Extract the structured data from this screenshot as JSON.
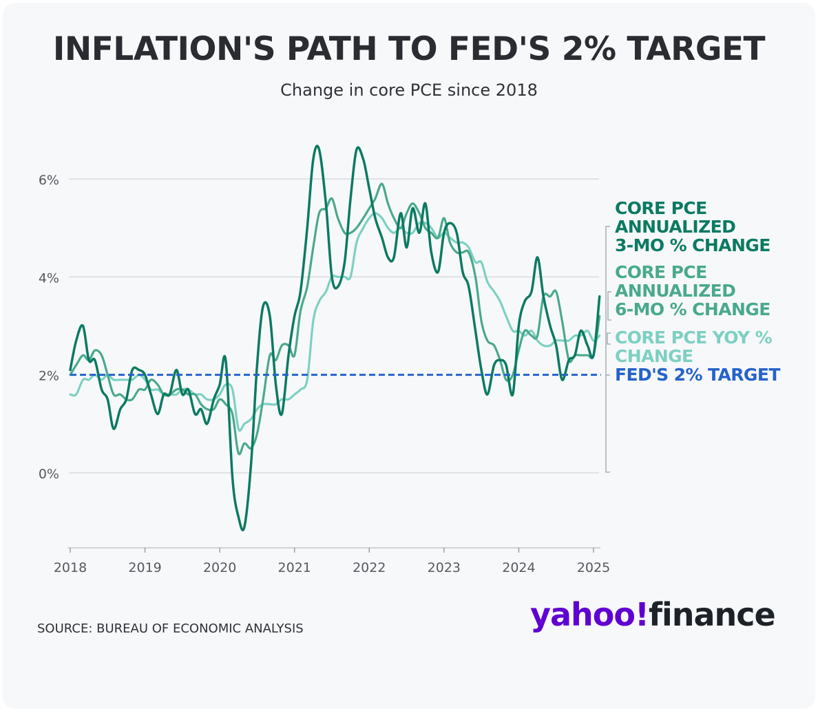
{
  "header": {
    "title": "INFLATION'S PATH TO FED'S 2% TARGET",
    "subtitle": "Change in core PCE since 2018"
  },
  "footer": {
    "source": "SOURCE: BUREAU OF ECONOMIC ANALYSIS",
    "logo_left": "yahoo!",
    "logo_right": "finance"
  },
  "colors": {
    "three_month": "#0b7a62",
    "six_month": "#49a98c",
    "yoy": "#7dd0c2",
    "target": "#2563c9",
    "grid": "#d9dbdf",
    "axis_text": "#55585e"
  },
  "chart_data": {
    "type": "line",
    "title": "INFLATION'S PATH TO FED'S 2% TARGET",
    "subtitle": "Change in core PCE since 2018",
    "xlabel": "",
    "ylabel": "",
    "xlim": [
      2018.0,
      2025.1
    ],
    "ylim": [
      -1.5,
      6.8
    ],
    "x_ticks": [
      2018,
      2019,
      2020,
      2021,
      2022,
      2023,
      2024,
      2025
    ],
    "x_tick_labels": [
      "2018",
      "2019",
      "2020",
      "2021",
      "2022",
      "2023",
      "2024",
      "2025"
    ],
    "y_ticks": [
      0,
      2,
      4,
      6
    ],
    "y_tick_labels": [
      "0%",
      "2%",
      "4%",
      "6%"
    ],
    "grid": true,
    "legend_position": "right",
    "series": [
      {
        "name": "CORE PCE YOY % CHANGE",
        "key": "yoy",
        "x": [
          2018.0,
          2018.08,
          2018.17,
          2018.25,
          2018.33,
          2018.42,
          2018.5,
          2018.58,
          2018.67,
          2018.75,
          2018.83,
          2018.92,
          2019.0,
          2019.08,
          2019.17,
          2019.25,
          2019.33,
          2019.42,
          2019.5,
          2019.58,
          2019.67,
          2019.75,
          2019.83,
          2019.92,
          2020.0,
          2020.08,
          2020.17,
          2020.25,
          2020.33,
          2020.42,
          2020.5,
          2020.58,
          2020.67,
          2020.75,
          2020.83,
          2020.92,
          2021.0,
          2021.08,
          2021.17,
          2021.25,
          2021.33,
          2021.42,
          2021.5,
          2021.58,
          2021.67,
          2021.75,
          2021.83,
          2021.92,
          2022.0,
          2022.08,
          2022.17,
          2022.25,
          2022.33,
          2022.42,
          2022.5,
          2022.58,
          2022.67,
          2022.75,
          2022.83,
          2022.92,
          2023.0,
          2023.08,
          2023.17,
          2023.25,
          2023.33,
          2023.42,
          2023.5,
          2023.58,
          2023.67,
          2023.75,
          2023.83,
          2023.92,
          2024.0,
          2024.08,
          2024.17,
          2024.25,
          2024.33,
          2024.42,
          2024.5,
          2024.58,
          2024.67,
          2024.75,
          2024.83,
          2024.92,
          2025.0,
          2025.08
        ],
        "y": [
          1.6,
          1.6,
          1.9,
          1.9,
          2.0,
          1.9,
          2.0,
          1.9,
          1.9,
          1.9,
          1.9,
          2.0,
          1.9,
          1.7,
          1.7,
          1.6,
          1.6,
          1.6,
          1.7,
          1.7,
          1.6,
          1.6,
          1.5,
          1.5,
          1.6,
          1.8,
          1.7,
          0.9,
          1.0,
          1.1,
          1.3,
          1.4,
          1.4,
          1.4,
          1.5,
          1.5,
          1.6,
          1.7,
          1.9,
          3.1,
          3.5,
          3.7,
          4.0,
          4.0,
          4.0,
          4.0,
          4.7,
          5.0,
          5.2,
          5.3,
          5.2,
          5.0,
          4.9,
          5.0,
          4.9,
          4.9,
          5.1,
          5.1,
          5.0,
          4.8,
          4.9,
          4.8,
          4.7,
          4.7,
          4.6,
          4.3,
          4.3,
          3.9,
          3.7,
          3.5,
          3.2,
          2.9,
          2.9,
          2.8,
          2.9,
          2.7,
          2.6,
          2.6,
          2.7,
          2.7,
          2.7,
          2.8,
          2.8,
          2.9,
          2.7,
          2.8
        ]
      },
      {
        "name": "CORE PCE ANNUALIZED 6-MO % CHANGE",
        "key": "six_month",
        "x": [
          2018.0,
          2018.08,
          2018.17,
          2018.25,
          2018.33,
          2018.42,
          2018.5,
          2018.58,
          2018.67,
          2018.75,
          2018.83,
          2018.92,
          2019.0,
          2019.08,
          2019.17,
          2019.25,
          2019.33,
          2019.42,
          2019.5,
          2019.58,
          2019.67,
          2019.75,
          2019.83,
          2019.92,
          2020.0,
          2020.08,
          2020.17,
          2020.25,
          2020.33,
          2020.42,
          2020.5,
          2020.58,
          2020.67,
          2020.75,
          2020.83,
          2020.92,
          2021.0,
          2021.08,
          2021.17,
          2021.25,
          2021.33,
          2021.42,
          2021.5,
          2021.58,
          2021.67,
          2021.75,
          2021.83,
          2021.92,
          2022.0,
          2022.08,
          2022.17,
          2022.25,
          2022.33,
          2022.42,
          2022.5,
          2022.58,
          2022.67,
          2022.75,
          2022.83,
          2022.92,
          2023.0,
          2023.08,
          2023.17,
          2023.25,
          2023.33,
          2023.42,
          2023.5,
          2023.58,
          2023.67,
          2023.75,
          2023.83,
          2023.92,
          2024.0,
          2024.08,
          2024.17,
          2024.25,
          2024.33,
          2024.42,
          2024.5,
          2024.58,
          2024.67,
          2024.75,
          2024.83,
          2024.92,
          2025.0,
          2025.08
        ],
        "y": [
          2.0,
          2.2,
          2.4,
          2.3,
          2.5,
          2.4,
          2.0,
          1.6,
          1.6,
          1.5,
          1.5,
          1.7,
          1.7,
          1.9,
          1.8,
          1.6,
          1.6,
          1.7,
          1.7,
          1.6,
          1.6,
          1.4,
          1.3,
          1.3,
          1.5,
          1.4,
          1.2,
          0.4,
          0.6,
          0.5,
          0.8,
          1.5,
          2.4,
          2.3,
          2.6,
          2.6,
          2.4,
          3.3,
          3.8,
          4.6,
          5.3,
          5.4,
          5.6,
          5.2,
          4.9,
          4.9,
          5.0,
          5.2,
          5.4,
          5.6,
          5.9,
          5.5,
          5.2,
          5.0,
          5.3,
          5.5,
          5.3,
          5.0,
          4.9,
          4.8,
          5.2,
          4.7,
          4.5,
          4.5,
          4.5,
          4.0,
          3.1,
          2.7,
          2.6,
          2.3,
          1.9,
          2.0,
          2.5,
          2.9,
          2.8,
          2.8,
          3.6,
          3.6,
          3.7,
          3.1,
          2.3,
          2.4,
          2.4,
          2.4,
          2.4,
          3.2
        ]
      },
      {
        "name": "CORE PCE ANNUALIZED 3-MO % CHANGE",
        "key": "three_month",
        "x": [
          2018.0,
          2018.08,
          2018.17,
          2018.25,
          2018.33,
          2018.42,
          2018.5,
          2018.58,
          2018.67,
          2018.75,
          2018.83,
          2018.92,
          2019.0,
          2019.08,
          2019.17,
          2019.25,
          2019.33,
          2019.42,
          2019.5,
          2019.58,
          2019.67,
          2019.75,
          2019.83,
          2019.92,
          2020.0,
          2020.08,
          2020.17,
          2020.25,
          2020.33,
          2020.42,
          2020.5,
          2020.58,
          2020.67,
          2020.75,
          2020.83,
          2020.92,
          2021.0,
          2021.08,
          2021.17,
          2021.25,
          2021.33,
          2021.42,
          2021.5,
          2021.58,
          2021.67,
          2021.75,
          2021.83,
          2021.92,
          2022.0,
          2022.08,
          2022.17,
          2022.25,
          2022.33,
          2022.42,
          2022.5,
          2022.58,
          2022.67,
          2022.75,
          2022.83,
          2022.92,
          2023.0,
          2023.08,
          2023.17,
          2023.25,
          2023.33,
          2023.42,
          2023.5,
          2023.58,
          2023.67,
          2023.75,
          2023.83,
          2023.92,
          2024.0,
          2024.08,
          2024.17,
          2024.25,
          2024.33,
          2024.42,
          2024.5,
          2024.58,
          2024.67,
          2024.75,
          2024.83,
          2024.92,
          2025.0,
          2025.08
        ],
        "y": [
          2.1,
          2.7,
          3.0,
          2.3,
          2.3,
          1.7,
          1.5,
          0.9,
          1.3,
          1.5,
          2.1,
          2.1,
          2.0,
          1.6,
          1.2,
          1.6,
          1.6,
          2.1,
          1.6,
          1.7,
          1.2,
          1.3,
          1.0,
          1.5,
          1.8,
          2.3,
          -0.1,
          -0.9,
          -1.1,
          0.2,
          2.2,
          3.4,
          3.2,
          1.8,
          1.2,
          2.4,
          3.2,
          3.7,
          5.0,
          6.4,
          6.6,
          5.5,
          4.0,
          3.8,
          4.3,
          5.6,
          6.6,
          6.4,
          5.8,
          5.2,
          4.8,
          4.4,
          4.4,
          5.3,
          4.6,
          5.4,
          4.9,
          5.5,
          4.5,
          4.1,
          4.9,
          5.1,
          4.9,
          4.1,
          3.8,
          2.9,
          2.1,
          1.6,
          2.2,
          2.3,
          2.2,
          1.6,
          3.0,
          3.5,
          3.7,
          4.4,
          3.6,
          3.0,
          2.6,
          1.9,
          2.3,
          2.4,
          2.9,
          2.6,
          2.4,
          3.6
        ]
      },
      {
        "name": "FED'S 2% TARGET",
        "key": "target",
        "x": [
          2018.0,
          2025.1
        ],
        "y": [
          2.0,
          2.0
        ]
      }
    ],
    "legend": [
      {
        "key": "three_month",
        "lines": [
          "CORE PCE",
          "ANNUALIZED",
          "3-MO % CHANGE"
        ]
      },
      {
        "key": "six_month",
        "lines": [
          "CORE PCE",
          "ANNUALIZED",
          "6-MO % CHANGE"
        ]
      },
      {
        "key": "yoy",
        "lines": [
          "CORE PCE YOY %",
          "CHANGE"
        ]
      },
      {
        "key": "target",
        "lines": [
          "FED'S 2% TARGET"
        ]
      }
    ]
  }
}
